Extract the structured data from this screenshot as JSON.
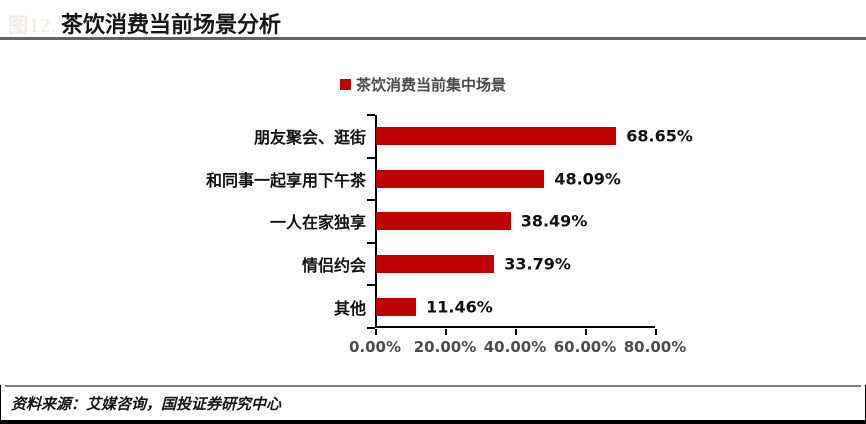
{
  "header": {
    "figure_label": "图12.",
    "title": "茶饮消费当前场景分析"
  },
  "chart_data": {
    "type": "bar",
    "orientation": "horizontal",
    "title": "茶饮消费当前场景分析",
    "legend": "茶饮消费当前集中场景",
    "legend_position": "top-center",
    "categories": [
      "朋友聚会、逛街",
      "和同事一起享用下午茶",
      "一人在家独享",
      "情侣约会",
      "其他"
    ],
    "values": [
      68.65,
      48.09,
      38.49,
      33.79,
      11.46
    ],
    "value_labels": [
      "68.65%",
      "48.09%",
      "38.49%",
      "33.79%",
      "11.46%"
    ],
    "x_ticks": [
      "0.00%",
      "20.00%",
      "40.00%",
      "60.00%",
      "80.00%"
    ],
    "xlim": [
      0,
      80
    ],
    "grid": false,
    "bar_color": "#C00000",
    "axis_color": "#000000",
    "tick_label_color": "#4d4d4d"
  },
  "footer": {
    "source": "资料来源：艾媒咨询，国投证券研究中心"
  },
  "colors": {
    "accent_red": "#C00000",
    "divider_gray": "#636363",
    "faint_label": "#f0ecea"
  }
}
